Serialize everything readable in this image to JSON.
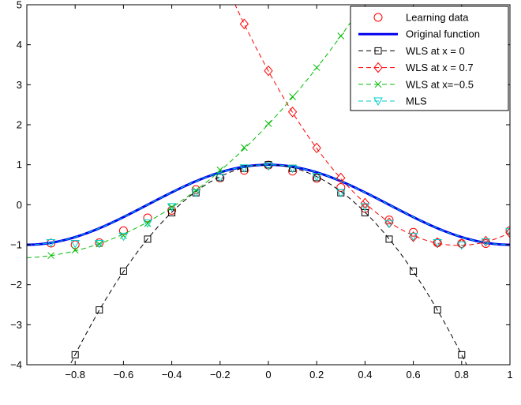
{
  "chart_data": {
    "type": "line",
    "title": "",
    "xlabel": "",
    "ylabel": "",
    "xlim": [
      -1,
      1
    ],
    "ylim": [
      -4,
      5
    ],
    "xticks": [
      -0.8,
      -0.6,
      -0.4,
      -0.2,
      0,
      0.2,
      0.4,
      0.6,
      0.8,
      1
    ],
    "yticks": [
      -4,
      -3,
      -2,
      -1,
      0,
      1,
      2,
      3,
      4,
      5
    ],
    "grid": false,
    "legend_position": "top-right",
    "series": [
      {
        "name": "Learning data",
        "style": "markers",
        "marker": "circle",
        "color": "#ff0000",
        "x": [
          -0.9,
          -0.8,
          -0.7,
          -0.6,
          -0.5,
          -0.4,
          -0.3,
          -0.2,
          -0.1,
          0,
          0.1,
          0.2,
          0.3,
          0.4,
          0.5,
          0.6,
          0.7,
          0.8,
          0.9,
          1.0
        ],
        "y": [
          -0.96,
          -1.0,
          -0.95,
          -0.65,
          -0.33,
          -0.14,
          0.38,
          0.67,
          0.86,
          0.99,
          0.84,
          0.66,
          0.43,
          -0.09,
          -0.38,
          -0.69,
          -0.95,
          -0.97,
          -0.97,
          -0.65
        ]
      },
      {
        "name": "Original function",
        "style": "line",
        "color": "#0000ee",
        "function": "cos(pi*x)"
      },
      {
        "name": "WLS at x = 0",
        "style": "dashed-markers",
        "marker": "square",
        "color": "#000000",
        "x": [
          -0.8,
          -0.7,
          -0.6,
          -0.5,
          -0.4,
          -0.3,
          -0.2,
          -0.1,
          0,
          0.1,
          0.2,
          0.3,
          0.4,
          0.5,
          0.6,
          0.7,
          0.8
        ],
        "y": [
          -3.75,
          -2.63,
          -1.66,
          -0.86,
          -0.2,
          0.3,
          0.68,
          0.91,
          1.0,
          0.91,
          0.68,
          0.3,
          -0.2,
          -0.86,
          -1.66,
          -2.63,
          -3.75
        ]
      },
      {
        "name": "WLS at x = 0.7",
        "style": "dashed-markers",
        "marker": "diamond",
        "color": "#ff0000",
        "x": [
          -0.1,
          0,
          0.1,
          0.2,
          0.3,
          0.4,
          0.5,
          0.6,
          0.7,
          0.8,
          0.9,
          1.0
        ],
        "y": [
          4.52,
          3.35,
          2.32,
          1.42,
          0.67,
          0.04,
          -0.45,
          -0.8,
          -0.95,
          -0.98,
          -0.91,
          -0.7
        ]
      },
      {
        "name": "WLS at x=−0.5",
        "style": "dashed-markers",
        "marker": "x",
        "color": "#00bb00",
        "x": [
          -0.9,
          -0.8,
          -0.7,
          -0.6,
          -0.5,
          -0.4,
          -0.3,
          -0.2,
          -0.1,
          0,
          0.1,
          0.2,
          0.3
        ],
        "y": [
          -1.27,
          -1.13,
          -0.98,
          -0.77,
          -0.47,
          -0.06,
          0.36,
          0.87,
          1.43,
          2.03,
          2.7,
          3.43,
          4.22
        ]
      },
      {
        "name": "MLS",
        "style": "dashed-markers",
        "marker": "triangle-down",
        "color": "#00cccc",
        "x": [
          -0.9,
          -0.8,
          -0.7,
          -0.6,
          -0.5,
          -0.4,
          -0.3,
          -0.2,
          -0.1,
          0,
          0.1,
          0.2,
          0.3,
          0.4,
          0.5,
          0.6,
          0.7,
          0.8,
          0.9,
          1.0
        ],
        "y": [
          -0.95,
          -0.97,
          -0.97,
          -0.79,
          -0.46,
          -0.05,
          0.3,
          0.68,
          0.92,
          0.97,
          0.91,
          0.7,
          0.3,
          -0.05,
          -0.47,
          -0.79,
          -0.95,
          -1.01,
          -0.93,
          -0.67
        ]
      }
    ]
  }
}
